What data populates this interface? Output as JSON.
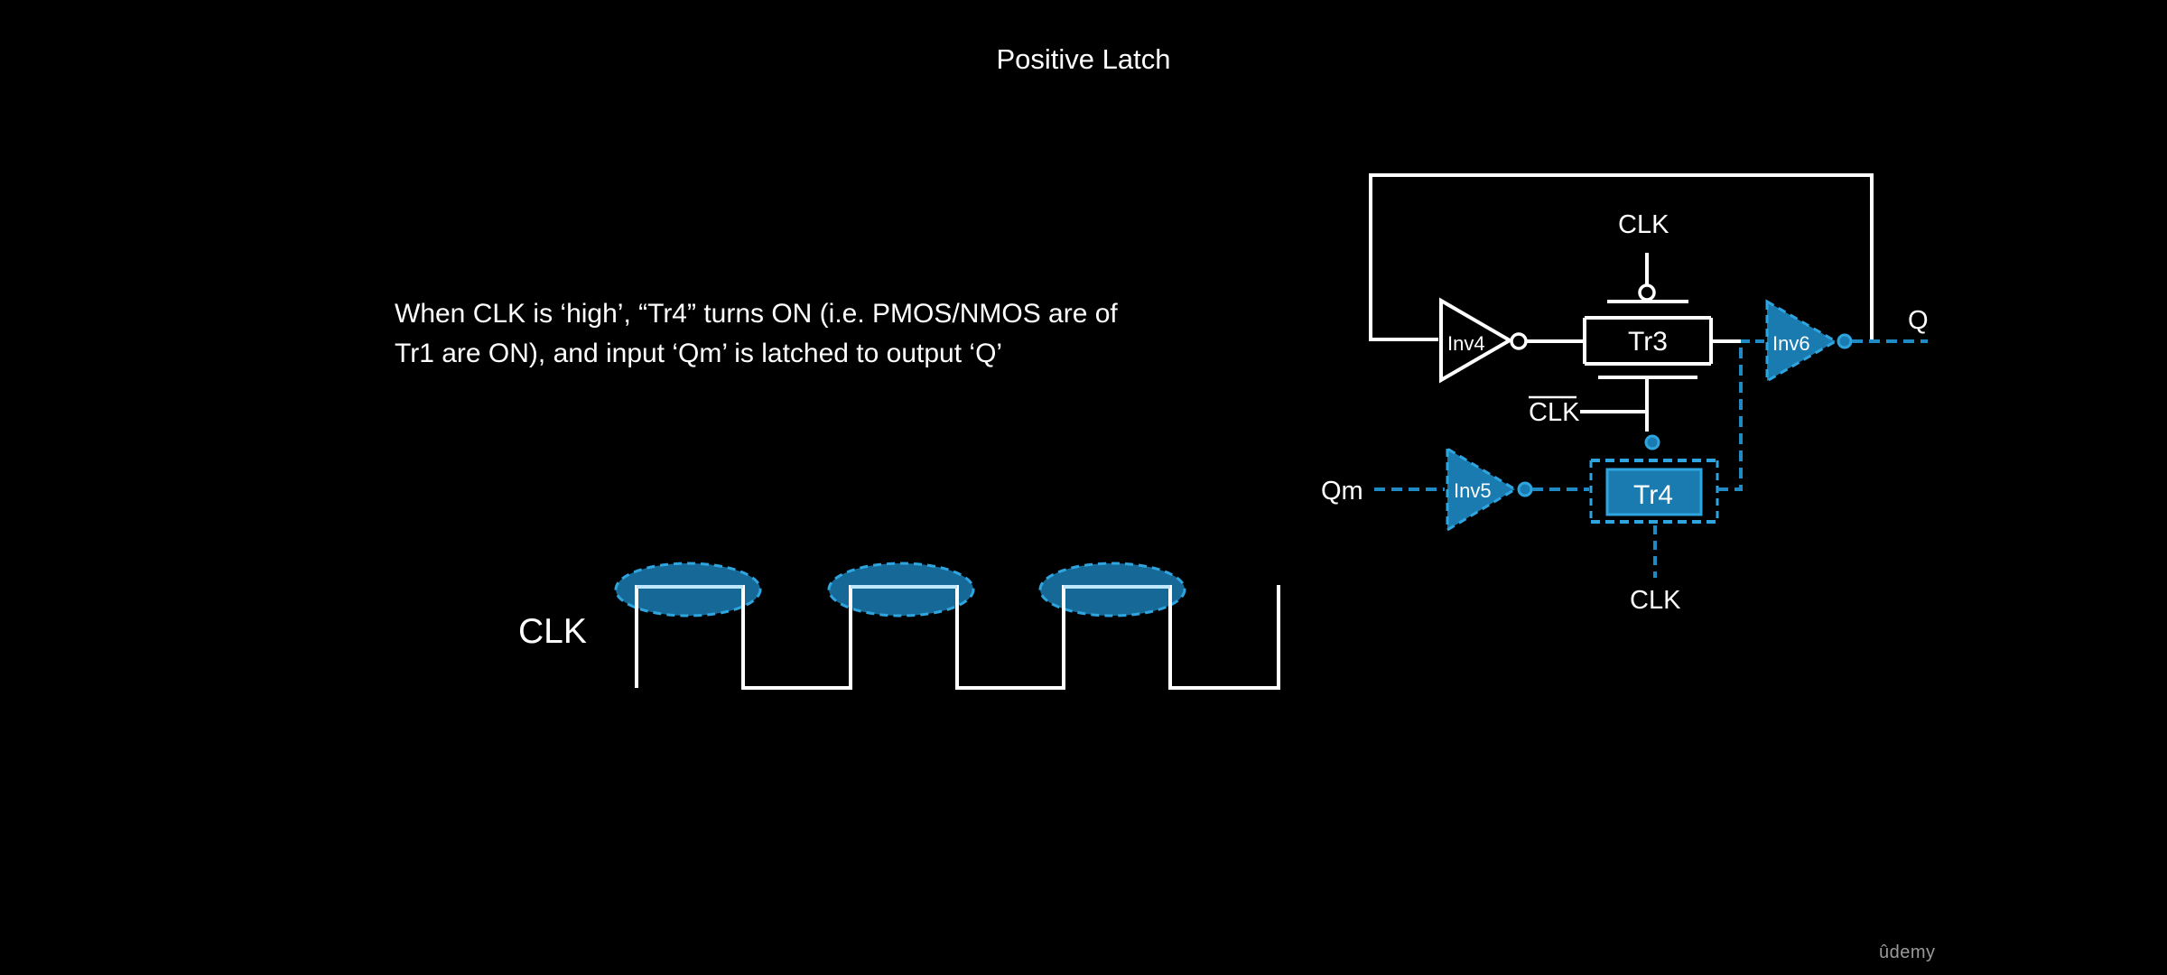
{
  "slide": {
    "title": "Positive Latch",
    "description_line1": "When CLK is ‘high’, “Tr4” turns ON (i.e. PMOS/NMOS are of",
    "description_line2": "Tr1 are ON), and input ‘Qm’ is latched to output ‘Q’",
    "watermark": "ûdemy"
  },
  "waveform": {
    "label": "CLK"
  },
  "circuit": {
    "labels": {
      "clk_top": "CLK",
      "clk_bar": "CLK",
      "clk_bottom": "CLK",
      "q_out": "Q",
      "qm_in": "Qm"
    },
    "gates": {
      "inv4": "Inv4",
      "inv5": "Inv5",
      "inv6": "Inv6",
      "tr3": "Tr3",
      "tr4": "Tr4"
    }
  },
  "colors": {
    "background": "#000000",
    "line": "#ffffff",
    "highlight": "#1f8ac4",
    "highlight_fill": "#1a7bb0",
    "highlight_dark": "#0e4f74"
  }
}
